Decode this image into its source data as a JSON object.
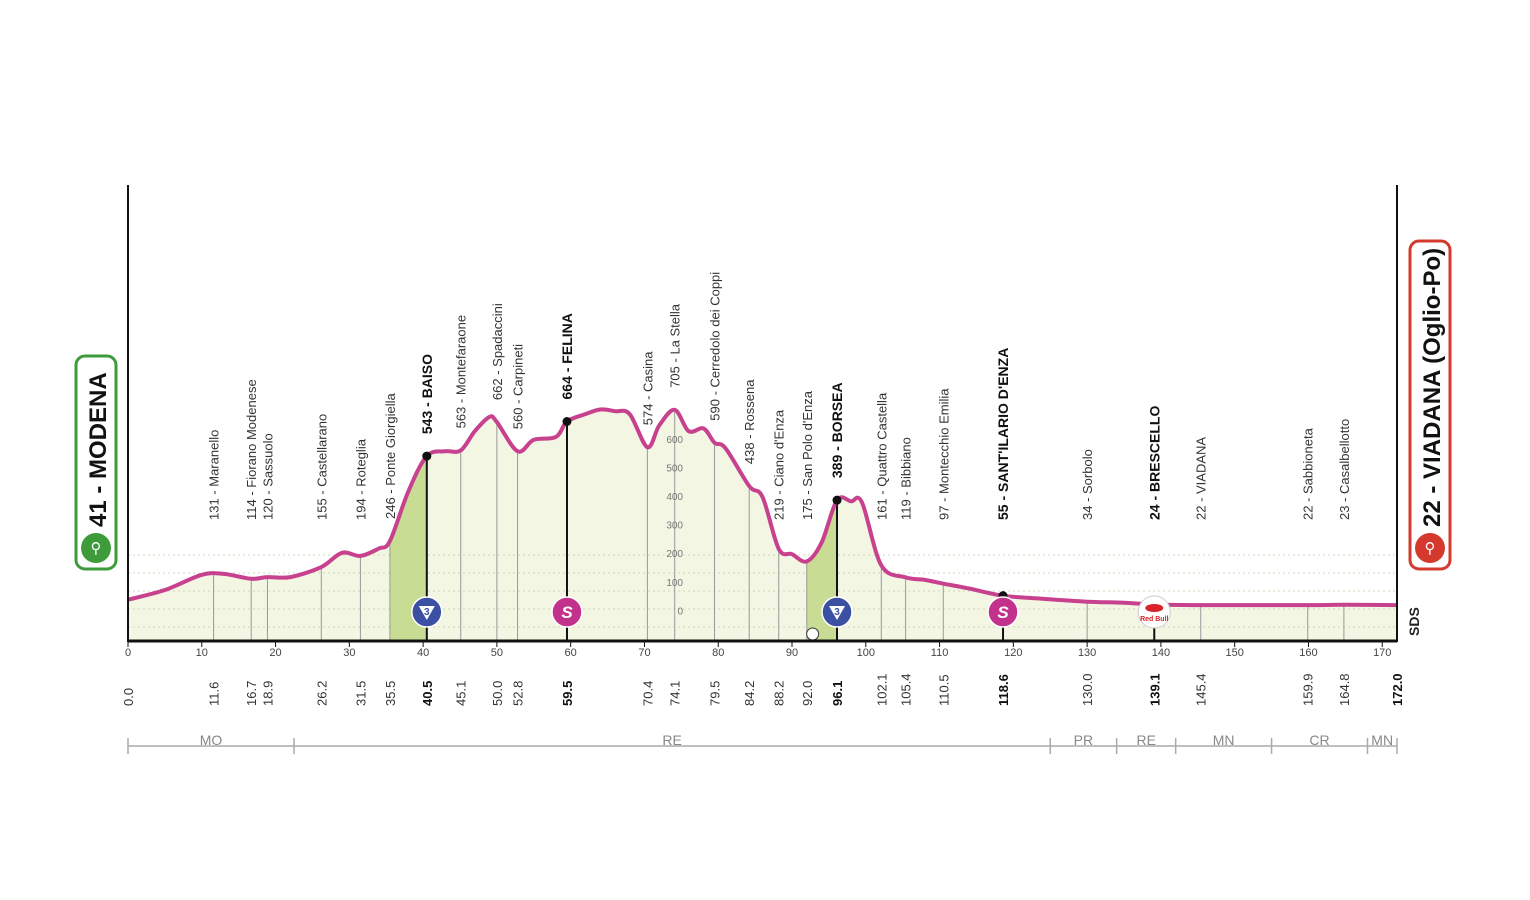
{
  "chart_data": {
    "type": "area",
    "title": "",
    "xlabel": "",
    "ylabel": "",
    "xlim": [
      0,
      172.0
    ],
    "ylim_m": [
      0,
      900
    ],
    "x_ticks": [
      0,
      10,
      20,
      30,
      40,
      50,
      60,
      70,
      80,
      90,
      100,
      110,
      120,
      130,
      140,
      150,
      160,
      170
    ],
    "altitude_ticks": [
      0,
      100,
      200,
      300,
      400,
      500,
      600
    ],
    "profile": [
      [
        0,
        41
      ],
      [
        5,
        75
      ],
      [
        10,
        128
      ],
      [
        13,
        131
      ],
      [
        16.7,
        114
      ],
      [
        18.9,
        120
      ],
      [
        22,
        120
      ],
      [
        26.2,
        155
      ],
      [
        29,
        205
      ],
      [
        31.5,
        194
      ],
      [
        34,
        220
      ],
      [
        35.5,
        246
      ],
      [
        38,
        420
      ],
      [
        40.5,
        543
      ],
      [
        43,
        560
      ],
      [
        45.1,
        563
      ],
      [
        47,
        630
      ],
      [
        49,
        680
      ],
      [
        50,
        662
      ],
      [
        52.8,
        560
      ],
      [
        55,
        600
      ],
      [
        58,
        610
      ],
      [
        59.5,
        664
      ],
      [
        62,
        690
      ],
      [
        64,
        706
      ],
      [
        66,
        700
      ],
      [
        68,
        690
      ],
      [
        70.4,
        574
      ],
      [
        72,
        650
      ],
      [
        74.1,
        705
      ],
      [
        76,
        630
      ],
      [
        78,
        640
      ],
      [
        79.5,
        590
      ],
      [
        81,
        570
      ],
      [
        84.2,
        438
      ],
      [
        86,
        400
      ],
      [
        88.2,
        219
      ],
      [
        90,
        200
      ],
      [
        92.0,
        175
      ],
      [
        94,
        240
      ],
      [
        96.1,
        389
      ],
      [
        98,
        385
      ],
      [
        99.5,
        380
      ],
      [
        102.1,
        161
      ],
      [
        105.4,
        119
      ],
      [
        108,
        110
      ],
      [
        110.5,
        97
      ],
      [
        114,
        80
      ],
      [
        118.6,
        55
      ],
      [
        124,
        44
      ],
      [
        130,
        34
      ],
      [
        135,
        30
      ],
      [
        139.1,
        24
      ],
      [
        145.4,
        22
      ],
      [
        150,
        22
      ],
      [
        159.9,
        22
      ],
      [
        164.8,
        23
      ],
      [
        172.0,
        22
      ]
    ],
    "km_marks": [
      "0.0",
      "11.6",
      "16.7",
      "18.9",
      "26.2",
      "31.5",
      "35.5",
      "40.5",
      "45.1",
      "50.0",
      "52.8",
      "59.5",
      "70.4",
      "74.1",
      "79.5",
      "84.2",
      "88.2",
      "92.0",
      "96.1",
      "102.1",
      "105.4",
      "110.5",
      "118.6",
      "130.0",
      "139.1",
      "145.4",
      "159.9",
      "164.8",
      "172.0"
    ],
    "waypoints": [
      {
        "km": 11.6,
        "alt": 131,
        "label": "131 - Maranello",
        "bold": false
      },
      {
        "km": 16.7,
        "alt": 114,
        "label": "114 - Fiorano Modenese",
        "bold": false
      },
      {
        "km": 18.9,
        "alt": 120,
        "label": "120 - Sassuolo",
        "bold": false
      },
      {
        "km": 26.2,
        "alt": 155,
        "label": "155 - Castellarano",
        "bold": false
      },
      {
        "km": 31.5,
        "alt": 194,
        "label": "194 - Roteglia",
        "bold": false
      },
      {
        "km": 35.5,
        "alt": 246,
        "label": "246 - Ponte Giorgiella",
        "bold": false
      },
      {
        "km": 40.5,
        "alt": 543,
        "label": "543 - BAISO",
        "bold": true,
        "marker": "kom",
        "kom_cat": "3"
      },
      {
        "km": 45.1,
        "alt": 563,
        "label": "563 - Montefaraone",
        "bold": false
      },
      {
        "km": 50.0,
        "alt": 662,
        "label": "662 - Spadaccini",
        "bold": false
      },
      {
        "km": 52.8,
        "alt": 560,
        "label": "560 - Carpineti",
        "bold": false
      },
      {
        "km": 59.5,
        "alt": 664,
        "label": "664 - FELINA",
        "bold": true,
        "marker": "sprint",
        "sprint_letter": "S"
      },
      {
        "km": 70.4,
        "alt": 574,
        "label": "574 - Casina",
        "bold": false
      },
      {
        "km": 74.1,
        "alt": 705,
        "label": "705 - La Stella",
        "bold": false
      },
      {
        "km": 79.5,
        "alt": 590,
        "label": "590 - Cerredolo dei Coppi",
        "bold": false
      },
      {
        "km": 84.2,
        "alt": 438,
        "label": "438 - Rossena",
        "bold": false
      },
      {
        "km": 88.2,
        "alt": 219,
        "label": "219 - Ciano d'Enza",
        "bold": false
      },
      {
        "km": 92.0,
        "alt": 175,
        "label": "175 - San Polo d'Enza",
        "bold": false
      },
      {
        "km": 96.1,
        "alt": 389,
        "label": "389 - BORSEA",
        "bold": true,
        "marker": "kom",
        "kom_cat": "3"
      },
      {
        "km": 102.1,
        "alt": 161,
        "label": "161 - Quattro Castella",
        "bold": false
      },
      {
        "km": 105.4,
        "alt": 119,
        "label": "119 - Bibbiano",
        "bold": false
      },
      {
        "km": 110.5,
        "alt": 97,
        "label": "97 - Montecchio Emilia",
        "bold": false
      },
      {
        "km": 118.6,
        "alt": 55,
        "label": "55 - SANT'ILARIO D'ENZA",
        "bold": true,
        "marker": "sprint",
        "sprint_letter": "S"
      },
      {
        "km": 130.0,
        "alt": 34,
        "label": "34 - Sorbolo",
        "bold": false
      },
      {
        "km": 139.1,
        "alt": 24,
        "label": "24 - BRESCELLO",
        "bold": true,
        "marker": "redbull",
        "marker_text": "Red Bull"
      },
      {
        "km": 145.4,
        "alt": 22,
        "label": "22 - VIADANA",
        "bold": false
      },
      {
        "km": 159.9,
        "alt": 22,
        "label": "22 - Sabbioneta",
        "bold": false
      },
      {
        "km": 164.8,
        "alt": 23,
        "label": "23 - Casalbellotto",
        "bold": false
      }
    ],
    "regions": [
      {
        "label": "MO",
        "from": 0,
        "to": 22.5
      },
      {
        "label": "RE",
        "from": 22.5,
        "to": 125
      },
      {
        "label": "PR",
        "from": 125,
        "to": 134
      },
      {
        "label": "RE",
        "from": 134,
        "to": 142
      },
      {
        "label": "MN",
        "from": 142,
        "to": 155
      },
      {
        "label": "CR",
        "from": 155,
        "to": 168
      },
      {
        "label": "MN",
        "from": 168,
        "to": 172
      }
    ],
    "climbs": [
      {
        "from": 35.5,
        "to": 40.5
      },
      {
        "from": 92.0,
        "to": 96.1
      }
    ],
    "start": {
      "label": "41 - MODENA"
    },
    "finish": {
      "label": "22 - VIADANA (Oglio-Po)"
    },
    "brand": "SDS",
    "colors": {
      "profile_line": "#c8418e",
      "ground_fill": "#f2f6e2",
      "climb_fill": "#c9dc94",
      "kom_marker": "#3b4fa3",
      "sprint_marker": "#c2318c",
      "start_green": "#3e9b3a",
      "finish_red": "#d5392e"
    }
  }
}
